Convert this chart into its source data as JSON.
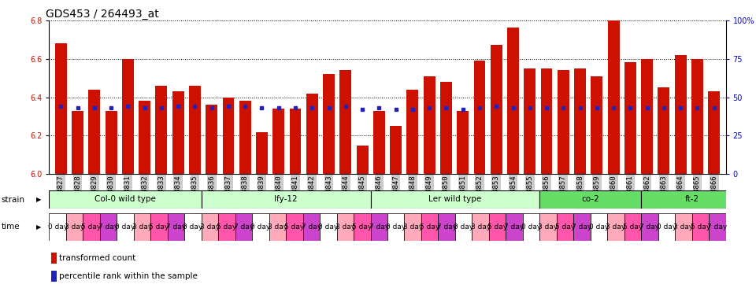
{
  "title": "GDS453 / 264493_at",
  "samples": [
    "GSM8827",
    "GSM8828",
    "GSM8829",
    "GSM8830",
    "GSM8831",
    "GSM8832",
    "GSM8833",
    "GSM8834",
    "GSM8835",
    "GSM8836",
    "GSM8837",
    "GSM8838",
    "GSM8839",
    "GSM8840",
    "GSM8841",
    "GSM8842",
    "GSM8843",
    "GSM8844",
    "GSM8845",
    "GSM8846",
    "GSM8847",
    "GSM8848",
    "GSM8849",
    "GSM8850",
    "GSM8851",
    "GSM8852",
    "GSM8853",
    "GSM8854",
    "GSM8855",
    "GSM8856",
    "GSM8857",
    "GSM8858",
    "GSM8859",
    "GSM8860",
    "GSM8861",
    "GSM8862",
    "GSM8863",
    "GSM8864",
    "GSM8865",
    "GSM8866"
  ],
  "bar_values": [
    6.68,
    6.33,
    6.44,
    6.33,
    6.6,
    6.38,
    6.46,
    6.43,
    6.46,
    6.36,
    6.4,
    6.38,
    6.22,
    6.34,
    6.34,
    6.42,
    6.52,
    6.54,
    6.15,
    6.33,
    6.25,
    6.44,
    6.51,
    6.48,
    6.33,
    6.59,
    6.67,
    6.76,
    6.55,
    6.55,
    6.54,
    6.55,
    6.51,
    6.8,
    6.58,
    6.6,
    6.45,
    6.62,
    6.6,
    6.43
  ],
  "percentile_y": [
    6.355,
    6.345,
    6.345,
    6.345,
    6.355,
    6.345,
    6.345,
    6.355,
    6.355,
    6.345,
    6.355,
    6.355,
    6.345,
    6.345,
    6.345,
    6.345,
    6.345,
    6.355,
    6.335,
    6.345,
    6.335,
    6.335,
    6.345,
    6.345,
    6.335,
    6.345,
    6.355,
    6.345,
    6.345,
    6.345,
    6.345,
    6.345,
    6.345,
    6.345,
    6.345,
    6.345,
    6.345,
    6.345,
    6.345,
    6.345
  ],
  "ylim": [
    6.0,
    6.8
  ],
  "yticks": [
    6.0,
    6.2,
    6.4,
    6.6,
    6.8
  ],
  "right_ytick_vals": [
    0,
    25,
    50,
    75,
    100
  ],
  "right_yticklabels": [
    "0",
    "25",
    "50",
    "75",
    "100%"
  ],
  "bar_color": "#CC1100",
  "percentile_color": "#2222BB",
  "background_color": "#FFFFFF",
  "strain_groups": [
    {
      "label": "Col-0 wild type",
      "start": 0,
      "end": 9,
      "color": "#CCFFCC"
    },
    {
      "label": "lfy-12",
      "start": 9,
      "end": 19,
      "color": "#CCFFCC"
    },
    {
      "label": "Ler wild type",
      "start": 19,
      "end": 29,
      "color": "#CCFFCC"
    },
    {
      "label": "co-2",
      "start": 29,
      "end": 35,
      "color": "#66DD66"
    },
    {
      "label": "ft-2",
      "start": 35,
      "end": 41,
      "color": "#66DD66"
    }
  ],
  "time_labels": [
    "0 day",
    "3 day",
    "5 day",
    "7 day"
  ],
  "time_colors": [
    "#FFFFFF",
    "#FFAABB",
    "#FF55AA",
    "#CC44CC"
  ],
  "legend_items": [
    {
      "label": "transformed count",
      "color": "#CC1100"
    },
    {
      "label": "percentile rank within the sample",
      "color": "#2222BB"
    }
  ],
  "bar_width": 0.7
}
